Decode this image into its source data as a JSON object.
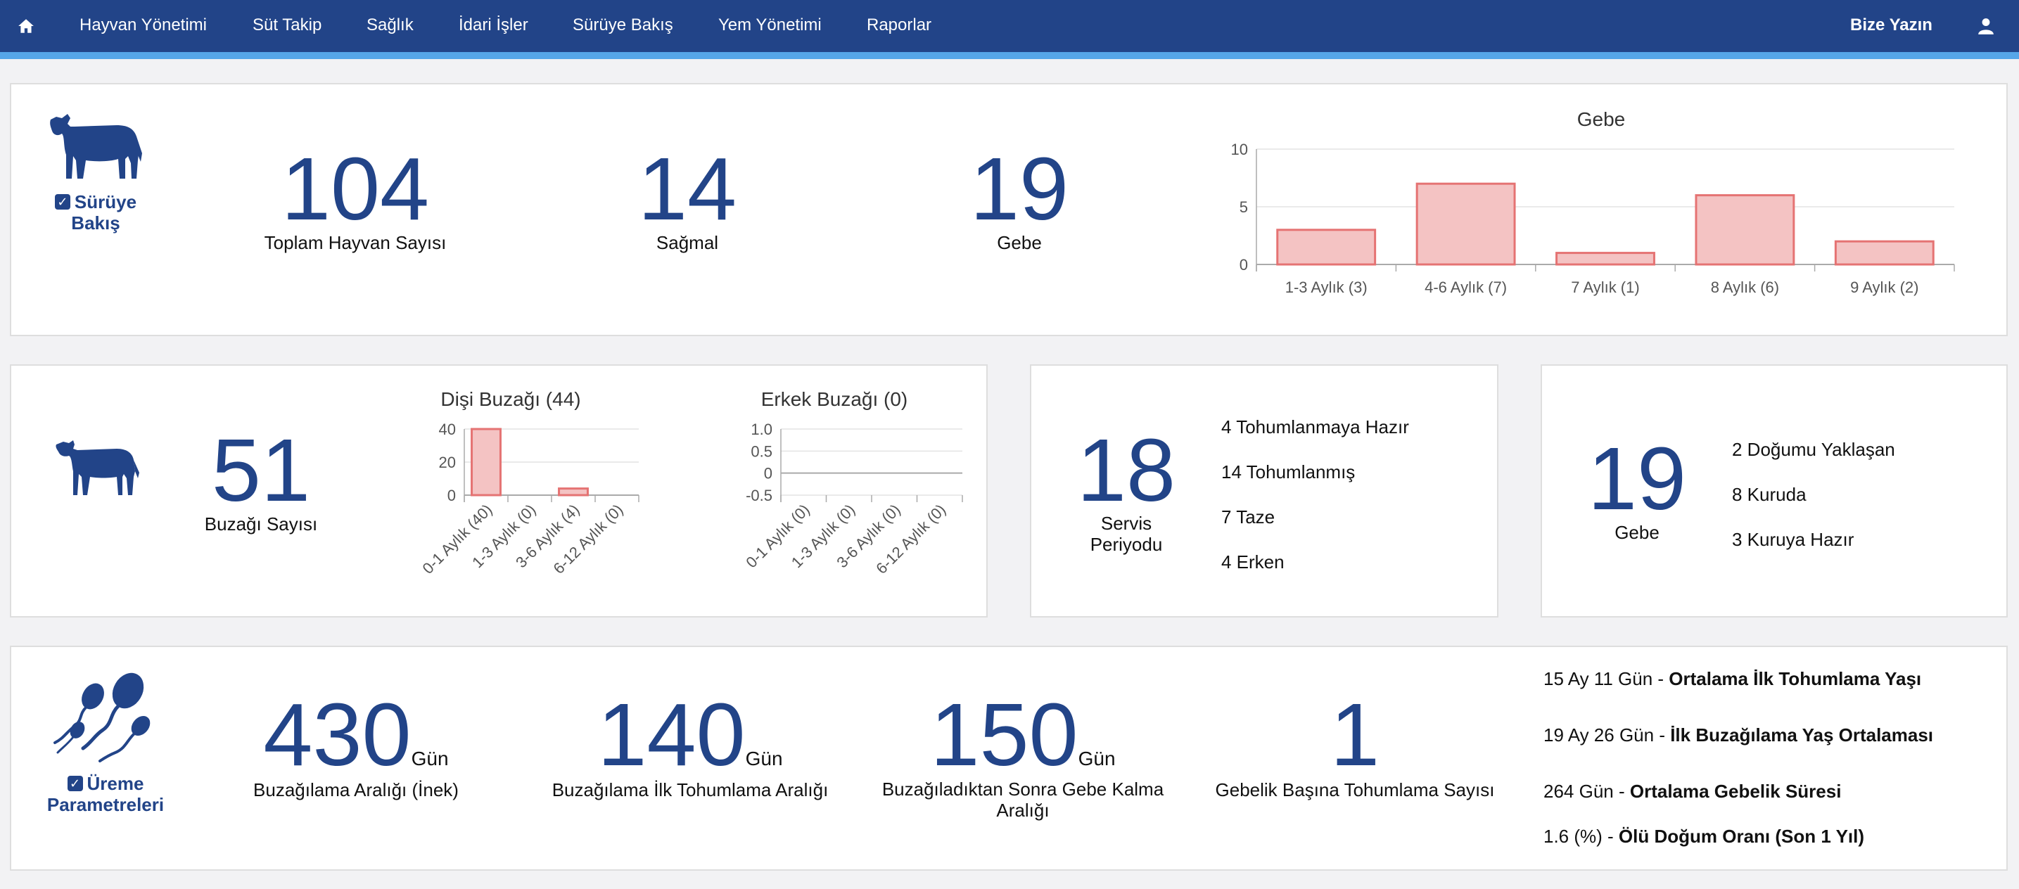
{
  "nav": {
    "items": [
      "Hayvan Yönetimi",
      "Süt Takip",
      "Sağlık",
      "İdari İşler",
      "Sürüye Bakış",
      "Yem Yönetimi",
      "Raporlar"
    ],
    "contact": "Bize Yazın"
  },
  "herd": {
    "title_line1": "Sürüye",
    "title_line2": "Bakış",
    "total": "104",
    "total_label": "Toplam Hayvan Sayısı",
    "milking": "14",
    "milking_label": "Sağmal",
    "pregnant": "19",
    "pregnant_label": "Gebe"
  },
  "calves": {
    "count": "51",
    "count_label": "Buzağı Sayısı"
  },
  "service": {
    "count": "18",
    "label_line1": "Servis",
    "label_line2": "Periyodu",
    "items": [
      "4 Tohumlanmaya Hazır",
      "14 Tohumlanmış",
      "7 Taze",
      "4 Erken"
    ]
  },
  "gestation": {
    "count": "19",
    "label": "Gebe",
    "items": [
      "2 Doğumu Yaklaşan",
      "8 Kuruda",
      "3 Kuruya Hazır"
    ]
  },
  "repro": {
    "title_line1": "Üreme",
    "title_line2": "Parametreleri",
    "metrics": [
      {
        "value": "430",
        "unit": "Gün",
        "label": "Buzağılama Aralığı (İnek)"
      },
      {
        "value": "140",
        "unit": "Gün",
        "label": "Buzağılama İlk Tohumlama Aralığı"
      },
      {
        "value": "150",
        "unit": "Gün",
        "label_line1": "Buzağıladıktan Sonra Gebe Kalma",
        "label_line2": "Aralığı"
      },
      {
        "value": "1",
        "label": "Gebelik Başına Tohumlama Sayısı"
      }
    ],
    "stats": [
      {
        "value": "15 Ay 11 Gün - ",
        "label": "Ortalama İlk Tohumlama Yaşı"
      },
      {
        "value": "19 Ay 26 Gün - ",
        "label": "İlk Buzağılama Yaş Ortalaması"
      },
      {
        "value": "264 Gün - ",
        "label": "Ortalama Gebelik Süresi"
      },
      {
        "value": "1.6 (%) - ",
        "label": "Ölü Doğum Oranı (Son 1 Yıl)"
      }
    ]
  },
  "colors": {
    "primary": "#224488",
    "accent": "#56a6e8",
    "bar_fill": "#f4c3c3",
    "bar_stroke": "#e57373"
  },
  "icons": {
    "home": "home-icon",
    "user": "user-icon",
    "cow": "cow-icon",
    "calf": "calf-icon",
    "sperm": "sperm-icon",
    "check": "checkbox-icon"
  },
  "chart_data": [
    {
      "type": "bar",
      "title": "Gebe",
      "categories": [
        "1-3 Aylık (3)",
        "4-6 Aylık (7)",
        "7 Aylık (1)",
        "8 Aylık (6)",
        "9 Aylık (2)"
      ],
      "values": [
        3,
        7,
        1,
        6,
        2
      ],
      "ylim": [
        0,
        10
      ],
      "yticks": [
        "10",
        "5",
        "0"
      ]
    },
    {
      "type": "bar",
      "title": "Dişi Buzağı (44)",
      "categories": [
        "0-1 Aylık (40)",
        "1-3 Aylık (0)",
        "3-6 Aylık (4)",
        "6-12 Aylık (0)"
      ],
      "values": [
        40,
        0,
        4,
        0
      ],
      "ylim": [
        0,
        40
      ],
      "yticks": [
        "40",
        "20",
        "0"
      ]
    },
    {
      "type": "bar",
      "title": "Erkek Buzağı (0)",
      "categories": [
        "0-1 Aylık (0)",
        "1-3 Aylık (0)",
        "3-6 Aylık (0)",
        "6-12 Aylık (0)"
      ],
      "values": [
        0,
        0,
        0,
        0
      ],
      "ylim": [
        -0.5,
        1.0
      ],
      "yticks": [
        "1.0",
        "0.5",
        "0",
        "-0.5"
      ]
    }
  ]
}
